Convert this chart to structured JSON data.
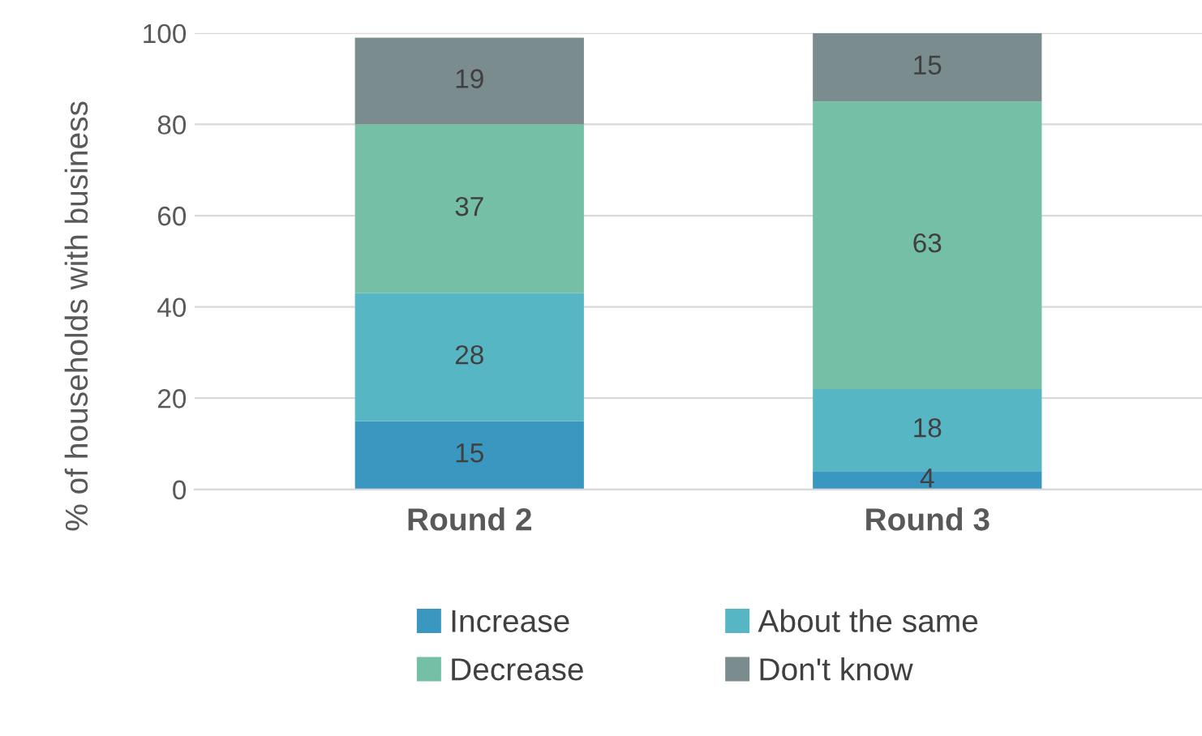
{
  "chart_data": {
    "type": "bar",
    "stacked": true,
    "ylabel": "% of households with business",
    "categories": [
      "Round 2",
      "Round 3"
    ],
    "series": [
      {
        "name": "Increase",
        "color": "#3a97c0",
        "values": [
          15,
          4
        ]
      },
      {
        "name": "About the same",
        "color": "#56b6c4",
        "values": [
          28,
          18
        ]
      },
      {
        "name": "Decrease",
        "color": "#74bfa5",
        "values": [
          37,
          63
        ]
      },
      {
        "name": "Don't know",
        "color": "#7a8c8e",
        "values": [
          19,
          15
        ]
      }
    ],
    "ylim": [
      0,
      100
    ],
    "yticks": [
      0,
      20,
      40,
      60,
      80,
      100
    ],
    "grid": "y",
    "legend": "bottom",
    "data_labels": true
  }
}
